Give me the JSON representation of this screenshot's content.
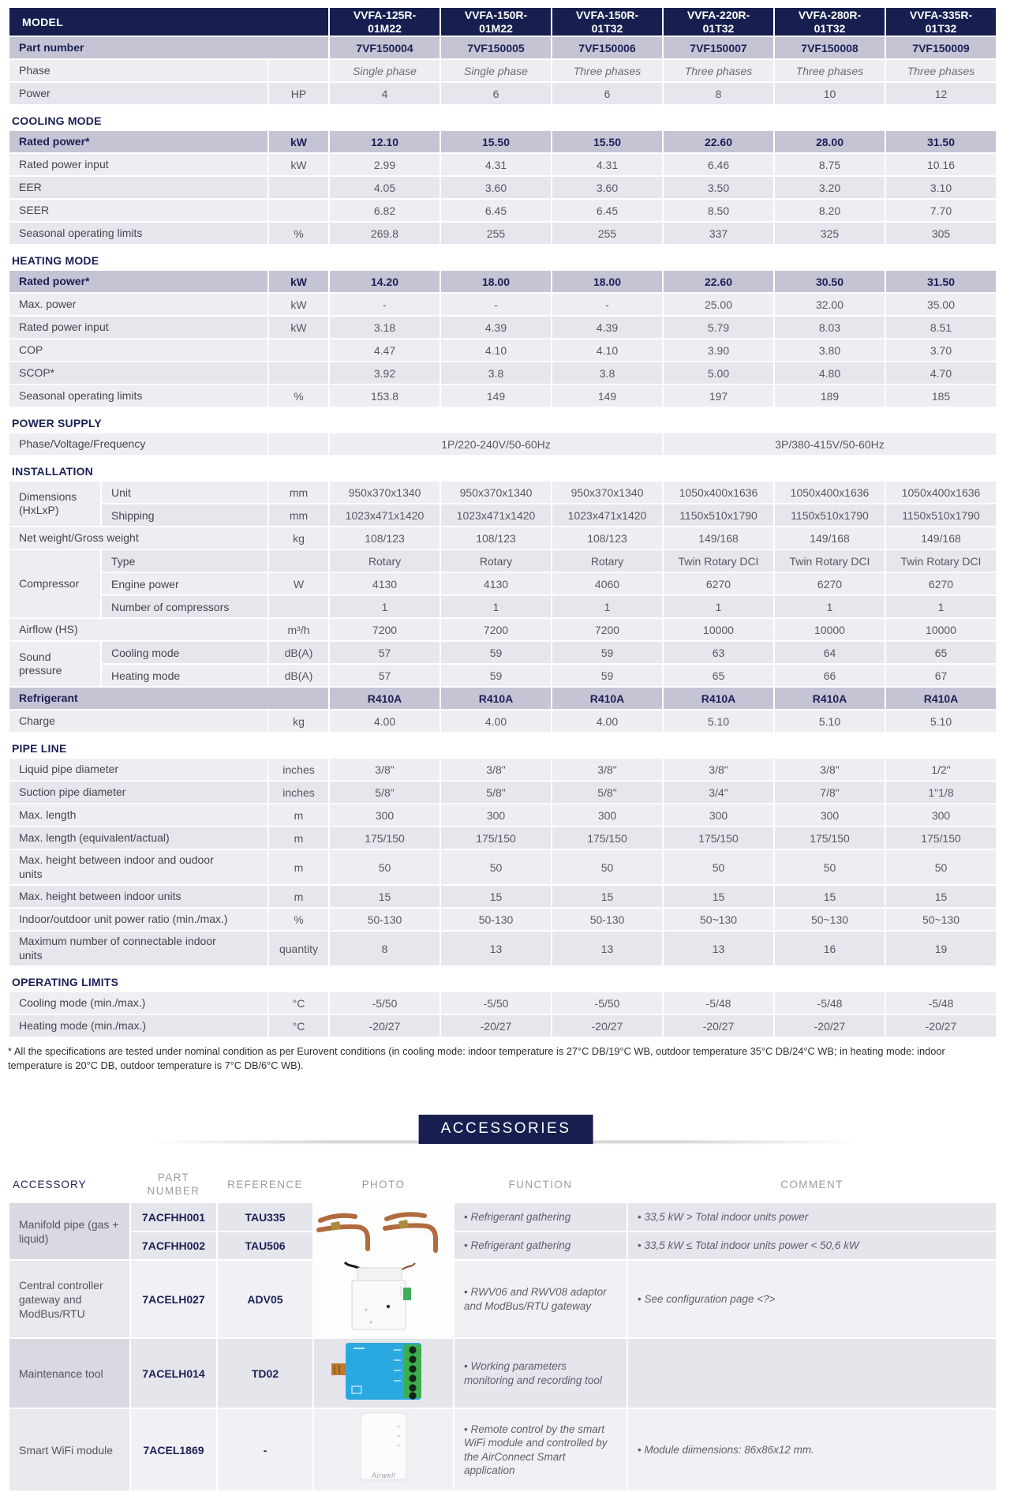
{
  "spec_table": {
    "model_label": "MODEL",
    "columns": [
      "VVFA-125R-\n01M22",
      "VVFA-150R-\n01M22",
      "VVFA-150R-\n01T32",
      "VVFA-220R-\n01T32",
      "VVFA-280R-\n01T32",
      "VVFA-335R-\n01T32"
    ],
    "rows": [
      {
        "type": "hl-full",
        "label": "Part number",
        "values": [
          "7VF150004",
          "7VF150005",
          "7VF150006",
          "7VF150007",
          "7VF150008",
          "7VF150009"
        ]
      },
      {
        "type": "row",
        "label": "Phase",
        "unit": "",
        "italic": true,
        "values": [
          "Single phase",
          "Single phase",
          "Three phases",
          "Three phases",
          "Three phases",
          "Three phases"
        ]
      },
      {
        "type": "row",
        "label": "Power",
        "unit": "HP",
        "values": [
          "4",
          "6",
          "6",
          "8",
          "10",
          "12"
        ]
      },
      {
        "type": "section",
        "label": "COOLING MODE"
      },
      {
        "type": "highlight",
        "label": "Rated power*",
        "unit": "kW",
        "values": [
          "12.10",
          "15.50",
          "15.50",
          "22.60",
          "28.00",
          "31.50"
        ]
      },
      {
        "type": "row",
        "label": "Rated power input",
        "unit": "kW",
        "values": [
          "2.99",
          "4.31",
          "4.31",
          "6.46",
          "8.75",
          "10.16"
        ]
      },
      {
        "type": "row",
        "label": "EER",
        "unit": "",
        "values": [
          "4.05",
          "3.60",
          "3.60",
          "3.50",
          "3.20",
          "3.10"
        ]
      },
      {
        "type": "row",
        "label": "SEER",
        "unit": "",
        "values": [
          "6.82",
          "6.45",
          "6.45",
          "8.50",
          "8.20",
          "7.70"
        ]
      },
      {
        "type": "row",
        "label": "Seasonal operating limits",
        "unit": "%",
        "values": [
          "269.8",
          "255",
          "255",
          "337",
          "325",
          "305"
        ]
      },
      {
        "type": "section",
        "label": "HEATING MODE"
      },
      {
        "type": "highlight",
        "label": "Rated power*",
        "unit": "kW",
        "values": [
          "14.20",
          "18.00",
          "18.00",
          "22.60",
          "30.50",
          "31.50"
        ]
      },
      {
        "type": "row",
        "label": "Max. power",
        "unit": "kW",
        "values": [
          "-",
          "-",
          "-",
          "25.00",
          "32.00",
          "35.00"
        ]
      },
      {
        "type": "row",
        "label": "Rated power input",
        "unit": "kW",
        "values": [
          "3.18",
          "4.39",
          "4.39",
          "5.79",
          "8.03",
          "8.51"
        ]
      },
      {
        "type": "row",
        "label": "COP",
        "unit": "",
        "values": [
          "4.47",
          "4.10",
          "4.10",
          "3.90",
          "3.80",
          "3.70"
        ]
      },
      {
        "type": "row",
        "label": "SCOP*",
        "unit": "",
        "values": [
          "3.92",
          "3.8",
          "3.8",
          "5.00",
          "4.80",
          "4.70"
        ]
      },
      {
        "type": "row",
        "label": "Seasonal operating limits",
        "unit": "%",
        "values": [
          "153.8",
          "149",
          "149",
          "197",
          "189",
          "185"
        ]
      },
      {
        "type": "section",
        "label": "POWER SUPPLY"
      },
      {
        "type": "span2",
        "label": "Phase/Voltage/Frequency",
        "unit": "",
        "values": [
          "1P/220-240V/50-60Hz",
          "3P/380-415V/50-60Hz"
        ]
      },
      {
        "type": "section",
        "label": "INSTALLATION"
      },
      {
        "type": "group",
        "label": "Dimensions (HxLxP)",
        "rows": [
          {
            "sub": "Unit",
            "unit": "mm",
            "values": [
              "950x370x1340",
              "950x370x1340",
              "950x370x1340",
              "1050x400x1636",
              "1050x400x1636",
              "1050x400x1636"
            ]
          },
          {
            "sub": "Shipping",
            "unit": "mm",
            "values": [
              "1023x471x1420",
              "1023x471x1420",
              "1023x471x1420",
              "1150x510x1790",
              "1150x510x1790",
              "1150x510x1790"
            ]
          }
        ]
      },
      {
        "type": "row",
        "label": "Net weight/Gross weight",
        "unit": "kg",
        "values": [
          "108/123",
          "108/123",
          "108/123",
          "149/168",
          "149/168",
          "149/168"
        ]
      },
      {
        "type": "group",
        "label": "Compressor",
        "rows": [
          {
            "sub": "Type",
            "unit": "",
            "values": [
              "Rotary",
              "Rotary",
              "Rotary",
              "Twin Rotary DCI",
              "Twin Rotary DCI",
              "Twin Rotary DCI"
            ]
          },
          {
            "sub": "Engine power",
            "unit": "W",
            "values": [
              "4130",
              "4130",
              "4060",
              "6270",
              "6270",
              "6270"
            ]
          },
          {
            "sub": "Number of compressors",
            "unit": "",
            "values": [
              "1",
              "1",
              "1",
              "1",
              "1",
              "1"
            ]
          }
        ]
      },
      {
        "type": "row",
        "label": "Airflow (HS)",
        "unit": "m³/h",
        "values": [
          "7200",
          "7200",
          "7200",
          "10000",
          "10000",
          "10000"
        ]
      },
      {
        "type": "group",
        "label": "Sound pressure",
        "rows": [
          {
            "sub": "Cooling mode",
            "unit": "dB(A)",
            "values": [
              "57",
              "59",
              "59",
              "63",
              "64",
              "65"
            ]
          },
          {
            "sub": "Heating mode",
            "unit": "dB(A)",
            "values": [
              "57",
              "59",
              "59",
              "65",
              "66",
              "67"
            ]
          }
        ]
      },
      {
        "type": "hl-full",
        "label": "Refrigerant",
        "values": [
          "R410A",
          "R410A",
          "R410A",
          "R410A",
          "R410A",
          "R410A"
        ]
      },
      {
        "type": "row",
        "label": "Charge",
        "unit": "kg",
        "values": [
          "4.00",
          "4.00",
          "4.00",
          "5.10",
          "5.10",
          "5.10"
        ]
      },
      {
        "type": "section",
        "label": "PIPE LINE"
      },
      {
        "type": "row",
        "label": "Liquid pipe diameter",
        "unit": "inches",
        "values": [
          "3/8\"",
          "3/8\"",
          "3/8\"",
          "3/8\"",
          "3/8\"",
          "1/2\""
        ]
      },
      {
        "type": "row",
        "label": "Suction pipe diameter",
        "unit": "inches",
        "values": [
          "5/8\"",
          "5/8\"",
          "5/8\"",
          "3/4\"",
          "7/8\"",
          "1\"1/8"
        ]
      },
      {
        "type": "row",
        "label": "Max. length",
        "unit": "m",
        "values": [
          "300",
          "300",
          "300",
          "300",
          "300",
          "300"
        ]
      },
      {
        "type": "row",
        "label": "Max. length (equivalent/actual)",
        "unit": "m",
        "values": [
          "175/150",
          "175/150",
          "175/150",
          "175/150",
          "175/150",
          "175/150"
        ]
      },
      {
        "type": "row",
        "label": "Max. height between indoor and oudoor units",
        "unit": "m",
        "values": [
          "50",
          "50",
          "50",
          "50",
          "50",
          "50"
        ]
      },
      {
        "type": "row",
        "label": "Max. height between indoor units",
        "unit": "m",
        "values": [
          "15",
          "15",
          "15",
          "15",
          "15",
          "15"
        ]
      },
      {
        "type": "row",
        "label": "Indoor/outdoor unit power ratio (min./max.)",
        "unit": "%",
        "values": [
          "50-130",
          "50-130",
          "50-130",
          "50~130",
          "50~130",
          "50~130"
        ]
      },
      {
        "type": "row",
        "label": "Maximum number of connectable indoor units",
        "unit": "quantity",
        "values": [
          "8",
          "13",
          "13",
          "13",
          "16",
          "19"
        ]
      },
      {
        "type": "section",
        "label": "OPERATING LIMITS"
      },
      {
        "type": "row",
        "label": "Cooling mode (min./max.)",
        "unit": "°C",
        "values": [
          "-5/50",
          "-5/50",
          "-5/50",
          "-5/48",
          "-5/48",
          "-5/48"
        ]
      },
      {
        "type": "row",
        "label": "Heating mode (min./max.)",
        "unit": "°C",
        "values": [
          "-20/27",
          "-20/27",
          "-20/27",
          "-20/27",
          "-20/27",
          "-20/27"
        ]
      }
    ],
    "footnote": "* All the specifications are tested under nominal condition as per Eurovent conditions (in cooling mode: indoor temperature is 27°C DB/19°C WB, outdoor temperature 35°C DB/24°C WB; in heating mode: indoor temperature is 20°C DB, outdoor temperature is 7°C DB/6°C WB)."
  },
  "accessories": {
    "title": "ACCESSORIES",
    "headers": [
      "ACCESSORY",
      "PART NUMBER",
      "REFERENCE",
      "PHOTO",
      "FUNCTION",
      "COMMENT"
    ],
    "rows": [
      {
        "name": "Manifold pipe (gas + liquid)",
        "photo": "manifold",
        "subrows": [
          {
            "part": "7ACFHH001",
            "ref": "TAU335",
            "function": "Refrigerant gathering",
            "comment": "33,5 kW > Total indoor units power"
          },
          {
            "part": "7ACFHH002",
            "ref": "TAU506",
            "function": "Refrigerant gathering",
            "comment": "33,5 kW ≤ Total indoor units power < 50,6 kW"
          }
        ]
      },
      {
        "name": "Central controller gateway and ModBus/RTU",
        "part": "7ACELH027",
        "ref": "ADV05",
        "photo": "gateway",
        "function": "RWV06 and RWV08 adaptor and ModBus/RTU gateway",
        "comment": "See configuration page <?>"
      },
      {
        "name": "Maintenance tool",
        "part": "7ACELH014",
        "ref": "TD02",
        "photo": "board",
        "function": "Working parameters monitoring and recording tool",
        "comment": ""
      },
      {
        "name": "Smart WiFi module",
        "part": "7ACEL1869",
        "ref": "-",
        "photo": "wifi",
        "photo_logo": "Airwell",
        "function": "Remote control by the smart WiFi module and controlled by the AirConnect Smart application",
        "comment": "Module diimensions: 86x86x12 mm."
      }
    ],
    "colors": {
      "navy": "#161f4f",
      "lavender": "#c4c4d5",
      "row_light": "#ededf2",
      "row_dark": "#e6e6ed"
    }
  }
}
